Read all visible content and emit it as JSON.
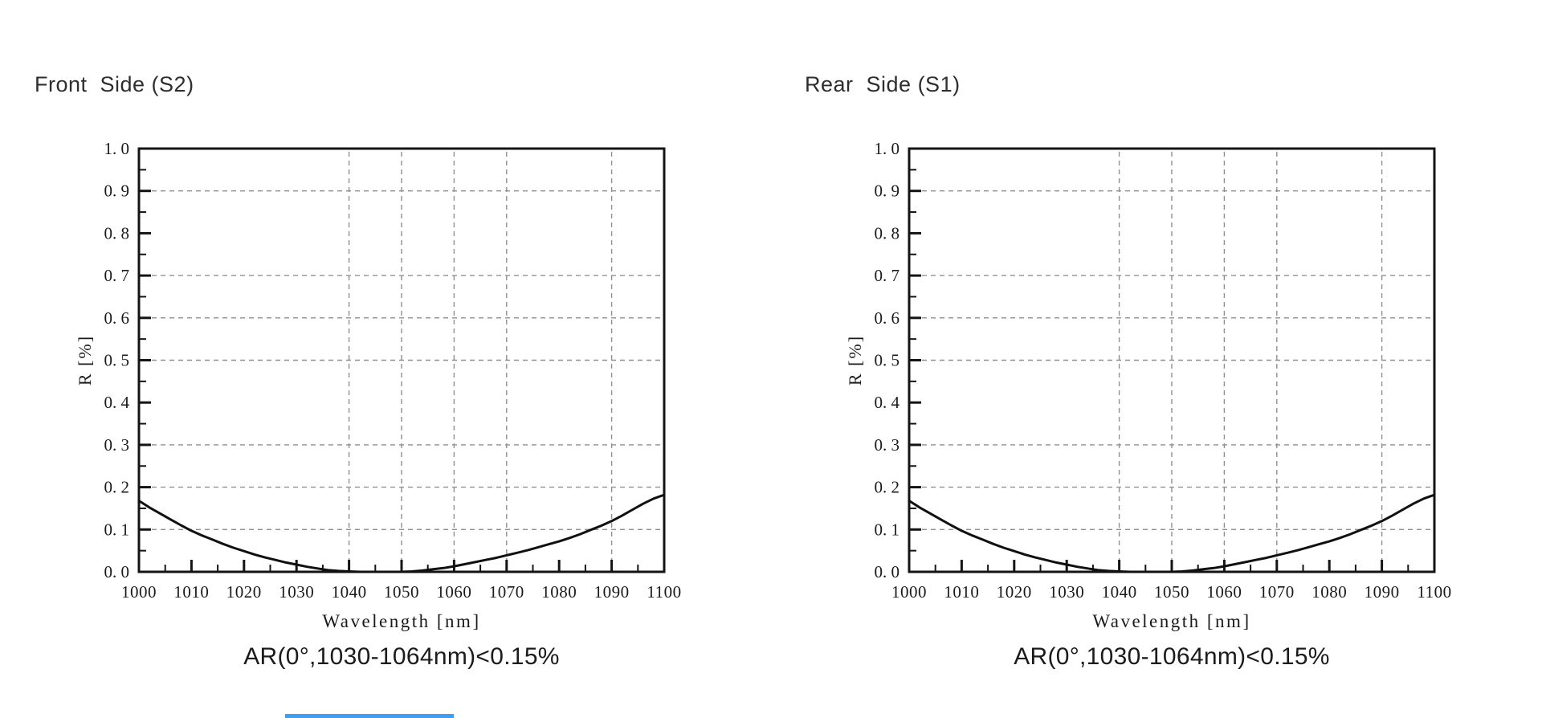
{
  "accent_bar": {
    "color": "#3aa0f5"
  },
  "chart_data": [
    {
      "type": "line",
      "title": "Front  Side (S2)",
      "caption": "AR(0°,1030-1064nm)<0.15%",
      "xlabel": "Wavelength [nm]",
      "ylabel": "R [%]",
      "xlim": [
        1000,
        1100
      ],
      "ylim": [
        0.0,
        1.0
      ],
      "xtick_major_step": 10,
      "xtick_minor_step": 5,
      "ytick_major_step": 0.1,
      "ytick_minor_step": 0.05,
      "xtick_labels": [
        "1000",
        "1010",
        "1020",
        "1030",
        "1040",
        "1050",
        "1060",
        "1070",
        "1080",
        "1090",
        "1100"
      ],
      "ytick_labels": [
        "0. 0",
        "0. 1",
        "0. 2",
        "0. 3",
        "0. 4",
        "0. 5",
        "0. 6",
        "0. 7",
        "0. 8",
        "0. 9",
        "1. 0"
      ],
      "grid_x": [
        1040,
        1050,
        1060,
        1070,
        1090
      ],
      "grid_y": [
        0.1,
        0.2,
        0.3,
        0.5,
        0.6,
        0.7,
        0.9
      ],
      "legend": "none",
      "colors": {
        "axis": "#141414",
        "grid": "#8f8f8f",
        "text": "#1a1a1a",
        "curve": "#101010"
      },
      "series": [
        {
          "name": "R",
          "x": [
            1000,
            1002,
            1004,
            1006,
            1008,
            1010,
            1012,
            1014,
            1016,
            1018,
            1020,
            1022,
            1024,
            1026,
            1028,
            1030,
            1032,
            1034,
            1036,
            1038,
            1040,
            1042,
            1044,
            1046,
            1048,
            1050,
            1052,
            1054,
            1056,
            1058,
            1060,
            1062,
            1064,
            1066,
            1068,
            1070,
            1072,
            1074,
            1076,
            1078,
            1080,
            1082,
            1084,
            1086,
            1088,
            1090,
            1092,
            1094,
            1096,
            1098,
            1100
          ],
          "y": [
            0.168,
            0.152,
            0.138,
            0.124,
            0.11,
            0.097,
            0.086,
            0.076,
            0.066,
            0.057,
            0.049,
            0.041,
            0.034,
            0.028,
            0.022,
            0.017,
            0.012,
            0.008,
            0.004,
            0.002,
            0.001,
            0.0,
            0.0,
            0.0,
            0.0,
            0.0,
            0.001,
            0.003,
            0.006,
            0.009,
            0.013,
            0.018,
            0.023,
            0.028,
            0.033,
            0.039,
            0.045,
            0.051,
            0.058,
            0.065,
            0.072,
            0.08,
            0.089,
            0.099,
            0.109,
            0.12,
            0.133,
            0.147,
            0.161,
            0.173,
            0.182
          ]
        }
      ]
    },
    {
      "type": "line",
      "title": "Rear  Side (S1)",
      "caption": "AR(0°,1030-1064nm)<0.15%",
      "xlabel": "Wavelength [nm]",
      "ylabel": "R [%]",
      "xlim": [
        1000,
        1100
      ],
      "ylim": [
        0.0,
        1.0
      ],
      "xtick_major_step": 10,
      "xtick_minor_step": 5,
      "ytick_major_step": 0.1,
      "ytick_minor_step": 0.05,
      "xtick_labels": [
        "1000",
        "1010",
        "1020",
        "1030",
        "1040",
        "1050",
        "1060",
        "1070",
        "1080",
        "1090",
        "1100"
      ],
      "ytick_labels": [
        "0. 0",
        "0. 1",
        "0. 2",
        "0. 3",
        "0. 4",
        "0. 5",
        "0. 6",
        "0. 7",
        "0. 8",
        "0. 9",
        "1. 0"
      ],
      "grid_x": [
        1040,
        1050,
        1060,
        1070,
        1090
      ],
      "grid_y": [
        0.1,
        0.2,
        0.3,
        0.5,
        0.6,
        0.7,
        0.9
      ],
      "legend": "none",
      "colors": {
        "axis": "#141414",
        "grid": "#8f8f8f",
        "text": "#1a1a1a",
        "curve": "#101010"
      },
      "series": [
        {
          "name": "R",
          "x": [
            1000,
            1002,
            1004,
            1006,
            1008,
            1010,
            1012,
            1014,
            1016,
            1018,
            1020,
            1022,
            1024,
            1026,
            1028,
            1030,
            1032,
            1034,
            1036,
            1038,
            1040,
            1042,
            1044,
            1046,
            1048,
            1050,
            1052,
            1054,
            1056,
            1058,
            1060,
            1062,
            1064,
            1066,
            1068,
            1070,
            1072,
            1074,
            1076,
            1078,
            1080,
            1082,
            1084,
            1086,
            1088,
            1090,
            1092,
            1094,
            1096,
            1098,
            1100
          ],
          "y": [
            0.168,
            0.152,
            0.138,
            0.124,
            0.11,
            0.097,
            0.086,
            0.076,
            0.066,
            0.057,
            0.049,
            0.041,
            0.034,
            0.028,
            0.022,
            0.017,
            0.012,
            0.008,
            0.004,
            0.002,
            0.001,
            0.0,
            0.0,
            0.0,
            0.0,
            0.0,
            0.001,
            0.003,
            0.006,
            0.009,
            0.013,
            0.018,
            0.023,
            0.028,
            0.033,
            0.039,
            0.045,
            0.051,
            0.058,
            0.065,
            0.072,
            0.08,
            0.089,
            0.099,
            0.109,
            0.12,
            0.133,
            0.147,
            0.161,
            0.173,
            0.182
          ]
        }
      ]
    }
  ]
}
